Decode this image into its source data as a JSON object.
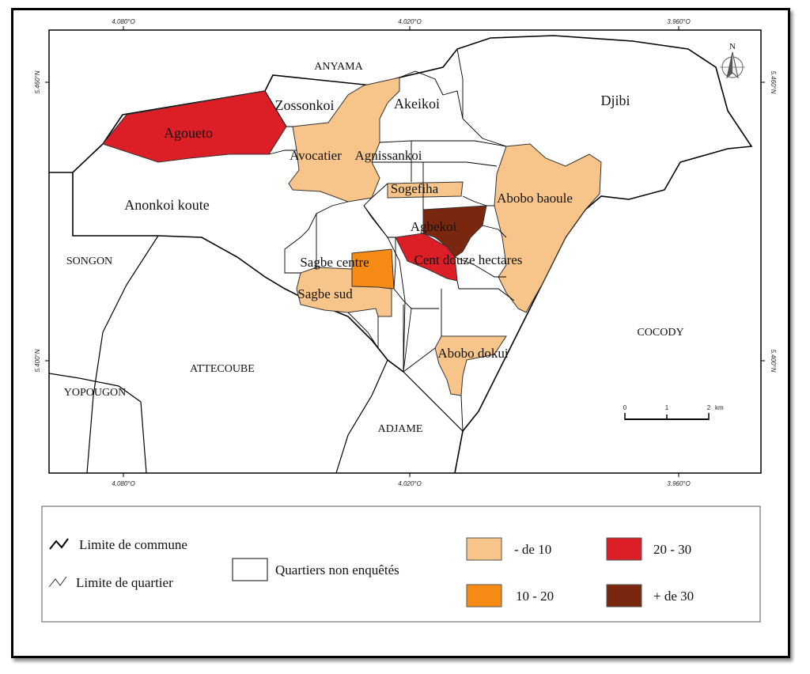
{
  "map": {
    "graticule": {
      "top_x_labels": [
        "4.080°O",
        "4.020°O",
        "3.960°O"
      ],
      "bottom_x_labels": [
        "4.080°O",
        "4.020°O",
        "3.960°O"
      ],
      "left_y_labels": [
        "5.460°N",
        "5.400°N"
      ],
      "right_y_labels": [
        "5.460°N",
        "5.400°N"
      ]
    },
    "communes": {
      "anyama": "ANYAMA",
      "songon": "SONGON",
      "attecoube": "ATTECOUBE",
      "yopougon": "YOPOUGON",
      "adjame": "ADJAME",
      "cocody": "COCODY"
    },
    "quartiers": {
      "zossonkoi": "Zossonkoi",
      "akeikoi": "Akeikoi",
      "djibi": "Djibi",
      "agoueto": "Agoueto",
      "avocatier": "Avocatier",
      "agnissankoi": "Agnissankoi",
      "sogefiha": "Sogefiha",
      "anonkoi_koute": "Anonkoi koute",
      "abobo_baoule": "Abobo baoule",
      "agbekoi": "Agbekoi",
      "sagbe_centre": "Sagbe centre",
      "cent_douze": "Cent douze hectares",
      "sagbe_sud": "Sagbe sud",
      "abobo_dokui": "Abobo dokui"
    },
    "north_arrow": "N",
    "scale_bar": {
      "ticks": [
        "0",
        "1",
        "2"
      ],
      "unit": "km"
    }
  },
  "legend": {
    "commune_limit": "Limite de commune",
    "quartier_limit": "Limite de quartier",
    "not_surveyed": "Quartiers non enquêtés",
    "classes": [
      {
        "label": "- de 10",
        "color": "#f7c48a"
      },
      {
        "label": "10 - 20",
        "color": "#f58a14"
      },
      {
        "label": "20 - 30",
        "color": "#dc1f26"
      },
      {
        "label": "+ de 30",
        "color": "#7a2710"
      }
    ]
  },
  "colors": {
    "lt10": "#f7c48a",
    "c10_20": "#f58a14",
    "c20_30": "#dc1f26",
    "gt30": "#7a2710",
    "unsurveyed": "#ffffff"
  }
}
